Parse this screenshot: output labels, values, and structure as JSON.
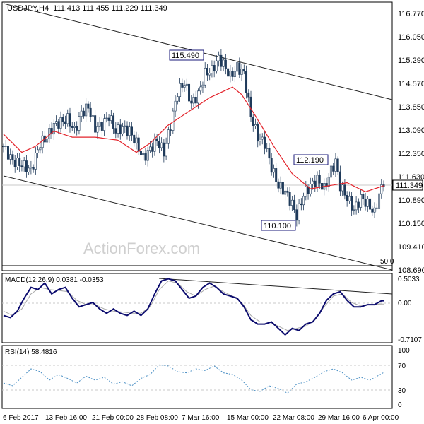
{
  "header": {
    "symbol": "USDJPY,H4",
    "ohlc": "111.413 111.455 111.229 111.349"
  },
  "watermark": "ActionForex.com",
  "colors": {
    "candle": "#1f3a5a",
    "ma": "#e3232b",
    "channel": "#222222",
    "macd_line": "#0b0b6e",
    "signal_line": "#a8a8a8",
    "rsi": "#4a8fc4",
    "grid": "#c8c8c8",
    "label_border": "#1a1a7a"
  },
  "chart_data": [
    {
      "type": "candlestick",
      "title": "USDJPY,H4",
      "ylim": [
        108.45,
        117.2
      ],
      "y_ticks": [
        "116.770",
        "116.050",
        "115.290",
        "114.570",
        "113.850",
        "113.090",
        "112.350",
        "111.630",
        "110.890",
        "110.150",
        "109.410",
        "108.690"
      ],
      "last_price": "111.349",
      "annotations": [
        "115.490",
        "112.190",
        "110.100",
        "50.0"
      ],
      "close_path": [
        [
          0,
          112.5
        ],
        [
          4,
          112.0
        ],
        [
          8,
          111.9
        ],
        [
          12,
          111.7
        ],
        [
          16,
          112.6
        ],
        [
          19,
          112.8
        ],
        [
          22,
          113.2
        ],
        [
          25,
          113.3
        ],
        [
          28,
          113.4
        ],
        [
          31,
          113.0
        ],
        [
          34,
          113.6
        ],
        [
          37,
          113.8
        ],
        [
          40,
          113.1
        ],
        [
          43,
          113.2
        ],
        [
          46,
          113.5
        ],
        [
          49,
          113.0
        ],
        [
          52,
          113.1
        ],
        [
          55,
          113.0
        ],
        [
          58,
          112.6
        ],
        [
          61,
          112.1
        ],
        [
          64,
          112.4
        ],
        [
          67,
          112.7
        ],
        [
          70,
          112.3
        ],
        [
          73,
          113.2
        ],
        [
          76,
          114.3
        ],
        [
          79,
          114.6
        ],
        [
          82,
          113.9
        ],
        [
          85,
          114.2
        ],
        [
          88,
          114.9
        ],
        [
          91,
          115.0
        ],
        [
          94,
          115.4
        ],
        [
          96,
          115.2
        ],
        [
          99,
          114.8
        ],
        [
          102,
          115.1
        ],
        [
          105,
          114.9
        ],
        [
          108,
          113.5
        ],
        [
          111,
          112.8
        ],
        [
          114,
          112.6
        ],
        [
          117,
          111.8
        ],
        [
          120,
          111.2
        ],
        [
          123,
          111.0
        ],
        [
          126,
          110.6
        ],
        [
          128,
          110.2
        ],
        [
          131,
          110.9
        ],
        [
          134,
          111.2
        ],
        [
          137,
          111.4
        ],
        [
          140,
          111.1
        ],
        [
          143,
          111.7
        ],
        [
          145,
          112.0
        ],
        [
          147,
          111.2
        ],
        [
          150,
          110.8
        ],
        [
          153,
          110.4
        ],
        [
          156,
          110.8
        ],
        [
          159,
          110.6
        ],
        [
          162,
          110.3
        ],
        [
          164,
          110.9
        ],
        [
          166,
          111.35
        ]
      ],
      "ma_path": [
        [
          0,
          112.9
        ],
        [
          8,
          112.3
        ],
        [
          14,
          112.5
        ],
        [
          22,
          113.0
        ],
        [
          30,
          112.8
        ],
        [
          40,
          112.8
        ],
        [
          50,
          112.7
        ],
        [
          58,
          112.3
        ],
        [
          64,
          112.6
        ],
        [
          72,
          113.2
        ],
        [
          80,
          113.6
        ],
        [
          90,
          114.1
        ],
        [
          100,
          114.45
        ],
        [
          104,
          114.2
        ],
        [
          110,
          113.5
        ],
        [
          118,
          112.5
        ],
        [
          126,
          111.6
        ],
        [
          134,
          111.1
        ],
        [
          142,
          111.2
        ],
        [
          150,
          111.3
        ],
        [
          158,
          111.0
        ],
        [
          166,
          111.2
        ]
      ]
    },
    {
      "type": "line",
      "title": "MACD(12,26,9) 0.0381 -0.0353",
      "ylim": [
        -0.9,
        0.64
      ],
      "y_ticks": [
        "0.5033",
        "0.00",
        "-0.7107"
      ],
      "series": [
        {
          "values": [
            [
              0,
              -0.3
            ],
            [
              3,
              -0.35
            ],
            [
              6,
              -0.2
            ],
            [
              9,
              0.1
            ],
            [
              12,
              0.35
            ],
            [
              15,
              0.3
            ],
            [
              18,
              0.45
            ],
            [
              21,
              0.2
            ],
            [
              24,
              0.3
            ],
            [
              27,
              0.35
            ],
            [
              30,
              0.1
            ],
            [
              33,
              -0.1
            ],
            [
              36,
              -0.05
            ],
            [
              39,
              0.0
            ],
            [
              42,
              -0.15
            ],
            [
              45,
              -0.25
            ],
            [
              48,
              -0.15
            ],
            [
              51,
              -0.25
            ],
            [
              54,
              -0.3
            ],
            [
              57,
              -0.2
            ],
            [
              60,
              -0.3
            ],
            [
              63,
              -0.15
            ],
            [
              66,
              0.2
            ],
            [
              69,
              0.5
            ],
            [
              72,
              0.55
            ],
            [
              75,
              0.5
            ],
            [
              78,
              0.3
            ],
            [
              81,
              0.1
            ],
            [
              84,
              0.15
            ],
            [
              87,
              0.35
            ],
            [
              90,
              0.45
            ],
            [
              93,
              0.35
            ],
            [
              96,
              0.2
            ],
            [
              99,
              0.15
            ],
            [
              102,
              0.1
            ],
            [
              105,
              -0.1
            ],
            [
              108,
              -0.4
            ],
            [
              111,
              -0.5
            ],
            [
              114,
              -0.5
            ],
            [
              117,
              -0.45
            ],
            [
              120,
              -0.6
            ],
            [
              123,
              -0.75
            ],
            [
              126,
              -0.6
            ],
            [
              129,
              -0.65
            ],
            [
              132,
              -0.5
            ],
            [
              135,
              -0.45
            ],
            [
              138,
              -0.25
            ],
            [
              141,
              0.05
            ],
            [
              144,
              0.2
            ],
            [
              147,
              0.25
            ],
            [
              150,
              0.05
            ],
            [
              153,
              -0.1
            ],
            [
              156,
              -0.1
            ],
            [
              159,
              -0.05
            ],
            [
              162,
              -0.05
            ],
            [
              165,
              0.04
            ]
          ]
        },
        {
          "values": [
            [
              0,
              -0.2
            ],
            [
              4,
              -0.3
            ],
            [
              8,
              -0.15
            ],
            [
              12,
              0.2
            ],
            [
              16,
              0.35
            ],
            [
              20,
              0.3
            ],
            [
              24,
              0.28
            ],
            [
              28,
              0.25
            ],
            [
              32,
              0.05
            ],
            [
              36,
              -0.05
            ],
            [
              40,
              -0.05
            ],
            [
              44,
              -0.15
            ],
            [
              48,
              -0.2
            ],
            [
              52,
              -0.22
            ],
            [
              56,
              -0.25
            ],
            [
              60,
              -0.25
            ],
            [
              64,
              -0.1
            ],
            [
              68,
              0.3
            ],
            [
              72,
              0.5
            ],
            [
              76,
              0.45
            ],
            [
              80,
              0.25
            ],
            [
              84,
              0.15
            ],
            [
              88,
              0.3
            ],
            [
              92,
              0.38
            ],
            [
              96,
              0.25
            ],
            [
              100,
              0.15
            ],
            [
              104,
              0.0
            ],
            [
              108,
              -0.3
            ],
            [
              112,
              -0.45
            ],
            [
              116,
              -0.45
            ],
            [
              120,
              -0.55
            ],
            [
              124,
              -0.65
            ],
            [
              128,
              -0.6
            ],
            [
              132,
              -0.55
            ],
            [
              136,
              -0.4
            ],
            [
              140,
              -0.1
            ],
            [
              144,
              0.15
            ],
            [
              148,
              0.2
            ],
            [
              152,
              0.0
            ],
            [
              156,
              -0.08
            ],
            [
              160,
              -0.05
            ],
            [
              165,
              -0.035
            ]
          ]
        }
      ]
    },
    {
      "type": "line",
      "title": "RSI(14) 58.4816",
      "ylim": [
        0,
        100
      ],
      "y_ticks": [
        "100",
        "70",
        "30",
        "0"
      ],
      "levels": [
        70,
        30
      ],
      "series": [
        {
          "values": [
            [
              0,
              40
            ],
            [
              4,
              35
            ],
            [
              8,
              50
            ],
            [
              12,
              65
            ],
            [
              16,
              60
            ],
            [
              20,
              45
            ],
            [
              24,
              55
            ],
            [
              28,
              48
            ],
            [
              32,
              40
            ],
            [
              36,
              52
            ],
            [
              40,
              45
            ],
            [
              44,
              50
            ],
            [
              48,
              38
            ],
            [
              52,
              42
            ],
            [
              56,
              35
            ],
            [
              60,
              48
            ],
            [
              64,
              55
            ],
            [
              68,
              72
            ],
            [
              72,
              70
            ],
            [
              76,
              60
            ],
            [
              80,
              58
            ],
            [
              84,
              65
            ],
            [
              88,
              62
            ],
            [
              92,
              70
            ],
            [
              96,
              58
            ],
            [
              100,
              55
            ],
            [
              104,
              45
            ],
            [
              108,
              28
            ],
            [
              112,
              25
            ],
            [
              116,
              35
            ],
            [
              120,
              30
            ],
            [
              124,
              22
            ],
            [
              128,
              38
            ],
            [
              132,
              42
            ],
            [
              136,
              50
            ],
            [
              140,
              60
            ],
            [
              144,
              65
            ],
            [
              148,
              58
            ],
            [
              152,
              45
            ],
            [
              156,
              50
            ],
            [
              160,
              45
            ],
            [
              166,
              58.5
            ]
          ]
        }
      ]
    }
  ],
  "x_ticks": [
    "6 Feb 2017",
    "13 Feb 16:00",
    "21 Feb 00:00",
    "28 Feb 08:00",
    "7 Mar 16:00",
    "15 Mar 00:00",
    "22 Mar 08:00",
    "29 Mar 16:00",
    "6 Apr 00:00"
  ]
}
